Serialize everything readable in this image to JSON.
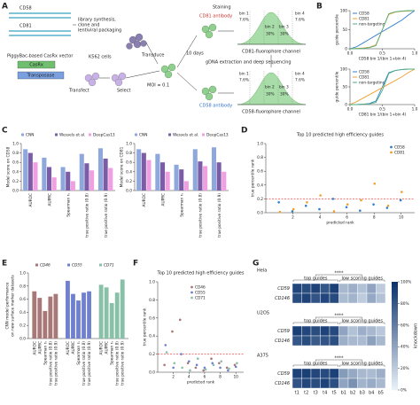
{
  "panel_labels": [
    "A",
    "B",
    "C",
    "D",
    "E",
    "F",
    "G"
  ],
  "diagram": {
    "guides": [
      "CD58",
      "CD81"
    ],
    "library_text": [
      "library synthesis,",
      "clone and",
      "lentiviral packaging"
    ],
    "vector_text": "PiggyBac-based CasRx vector",
    "vector_parts": [
      "CasRx",
      "Transposase"
    ],
    "cells": "K562 cells",
    "transfect": "Transfect",
    "select": "Select",
    "transduce": "Transduce",
    "moi": "MOI = 0.1",
    "days": "10 days",
    "staining": "Staining",
    "antibodies": [
      "CD81 antibody",
      "CD58 antibody"
    ],
    "sequencing": "gDNA extraction and deep sequencing",
    "bins": [
      "bin 1",
      "bin 2",
      "bin 3",
      "bin 4"
    ],
    "bin_percents": [
      "7.6%",
      "30%",
      "30%",
      "7.6%"
    ],
    "channels": [
      "CD81-fluorophore channel",
      "CD58-fluorophore channel"
    ]
  },
  "chart_data": [
    {
      "type": "line",
      "ylabel": "guide percentile",
      "xlabel": "CD58 bin 1/(bin 1+bin 4)",
      "x": [
        0,
        0.1,
        0.2,
        0.3,
        0.4,
        0.5,
        0.6,
        0.7,
        0.8,
        0.9,
        1.0
      ],
      "series": [
        {
          "name": "CD58",
          "color": "#2f7fd0",
          "values": [
            0,
            5,
            15,
            25,
            35,
            45,
            55,
            65,
            75,
            88,
            100
          ]
        },
        {
          "name": "CD81",
          "color": "#f0a030",
          "values": [
            0,
            1,
            2,
            4,
            10,
            50,
            90,
            96,
            98,
            99,
            100
          ]
        },
        {
          "name": "non-targeting",
          "color": "#4caf7a",
          "values": [
            0,
            0,
            1,
            3,
            8,
            50,
            92,
            97,
            99,
            100,
            100
          ]
        }
      ],
      "xlim": [
        0,
        1
      ],
      "xticks": [
        {
          "value": 0,
          "label": "0.0"
        },
        0.5,
        {
          "value": 1,
          "label": "1.0"
        }
      ],
      "ylim": [
        0,
        100
      ],
      "yticks": [
        0,
        50,
        100
      ]
    },
    {
      "type": "line",
      "ylabel": "guide percentile",
      "xlabel": "CD81 bin 1/(bin 1+bin 4)",
      "x": [
        0,
        0.1,
        0.2,
        0.3,
        0.4,
        0.5,
        0.6,
        0.7,
        0.8,
        0.9,
        1.0
      ],
      "series": [
        {
          "name": "CD58",
          "color": "#2f7fd0",
          "values": [
            0,
            0,
            1,
            3,
            10,
            50,
            90,
            96,
            99,
            100,
            100
          ]
        },
        {
          "name": "CD81",
          "color": "#f0a030",
          "values": [
            0,
            8,
            18,
            28,
            38,
            48,
            58,
            68,
            78,
            90,
            100
          ]
        },
        {
          "name": "non-targeting",
          "color": "#4caf7a",
          "values": [
            0,
            0,
            1,
            2,
            6,
            40,
            88,
            96,
            99,
            100,
            100
          ]
        }
      ],
      "xlim": [
        0,
        1
      ],
      "xticks": [
        {
          "value": 0,
          "label": "0.0"
        },
        0.5,
        {
          "value": 1,
          "label": "1.0"
        }
      ],
      "ylim": [
        0,
        100
      ],
      "yticks": [
        0,
        50,
        100
      ]
    },
    {
      "type": "bar",
      "ylabel": "Model score on CD58",
      "categories": [
        "AUROC",
        "AUPRC",
        "Spearman rₛ",
        "true positive ratio (0.8)",
        "true positive ratio (0.9)"
      ],
      "series": [
        {
          "name": "CNN",
          "color": "#8fa8dc",
          "values": [
            0.88,
            0.7,
            0.5,
            0.78,
            0.9
          ]
        },
        {
          "name": "Wessels et al.",
          "color": "#7b5ca6",
          "values": [
            0.8,
            0.5,
            0.4,
            0.58,
            0.68
          ]
        },
        {
          "name": "DeepCas13",
          "color": "#f0a0e0",
          "values": [
            0.6,
            0.28,
            0.2,
            0.43,
            0.48
          ]
        }
      ],
      "ylim": [
        0,
        1
      ],
      "yticks": [
        {
          "value": 0,
          "label": "0.0"
        },
        0.2,
        0.4,
        0.6,
        0.8,
        {
          "value": 1,
          "label": "1.0"
        }
      ]
    },
    {
      "type": "bar",
      "ylabel": "Model score on CD81",
      "categories": [
        "AUROC",
        "AUPRC",
        "Spearman rₛ",
        "true positive ratio (0.8)",
        "true positive ratio (0.9)"
      ],
      "series": [
        {
          "name": "CNN",
          "color": "#8fa8dc",
          "values": [
            0.88,
            0.78,
            0.55,
            0.88,
            0.92
          ]
        },
        {
          "name": "Wessels et al.",
          "color": "#7b5ca6",
          "values": [
            0.8,
            0.6,
            0.45,
            0.62,
            0.6
          ]
        },
        {
          "name": "DeepCas13",
          "color": "#f0a0e0",
          "values": [
            0.65,
            0.4,
            0.2,
            0.52,
            0.4
          ]
        }
      ],
      "ylim": [
        0,
        1
      ],
      "yticks": [
        {
          "value": 0,
          "label": "0.0"
        },
        0.2,
        0.4,
        0.6,
        0.8,
        {
          "value": 1,
          "label": "1.0"
        }
      ]
    },
    {
      "type": "scatter",
      "title": "Top 10 predicted high efficiency guides",
      "xlabel": "predicted rank",
      "ylabel": "true percentile rank",
      "x": [
        1,
        2,
        3,
        4,
        5,
        6,
        7,
        8,
        9,
        10
      ],
      "series": [
        {
          "name": "CD58",
          "color": "#2f7fd0",
          "values": [
            0.15,
            0.02,
            0.1,
            0.05,
            0.2,
            0.08,
            0.03,
            0.12,
            0.07,
            0.18
          ]
        },
        {
          "name": "CD81",
          "color": "#f0a030",
          "values": [
            0.01,
            0.05,
            0.15,
            0.25,
            0.02,
            0.12,
            0.18,
            0.42,
            0.1,
            0.3
          ]
        }
      ],
      "threshold": 0.2,
      "xlim": [
        0,
        11
      ],
      "xticks": [
        2,
        4,
        6,
        8,
        10
      ],
      "ylim": [
        0,
        1
      ],
      "yticks": [
        {
          "value": 0,
          "label": "0.0"
        },
        0.2,
        0.4,
        0.6,
        0.8,
        {
          "value": 1,
          "label": "1.0"
        }
      ]
    },
    {
      "type": "bar",
      "group_by": "series",
      "ylabel": [
        "CNN model performance",
        "on new surface marker datasets"
      ],
      "categories": [
        "AUROC",
        "AUPRC",
        "Spearman rₛ",
        "true positive ratio (0.8)",
        "true positive ratio (0.9)"
      ],
      "series": [
        {
          "name": "CD46",
          "color": "#a87878",
          "values": [
            0.72,
            0.62,
            0.42,
            0.64,
            0.68
          ]
        },
        {
          "name": "CD55",
          "color": "#7080d0",
          "values": [
            0.88,
            0.68,
            0.58,
            0.7,
            0.72
          ]
        },
        {
          "name": "CD71",
          "color": "#88c0a8",
          "values": [
            0.82,
            0.78,
            0.54,
            0.7,
            0.9
          ]
        }
      ],
      "ylim": [
        0,
        1
      ],
      "yticks": [
        {
          "value": 0,
          "label": "0.0"
        },
        0.2,
        0.4,
        0.6,
        0.8,
        {
          "value": 1,
          "label": "1.0"
        }
      ]
    },
    {
      "type": "scatter",
      "title": "Top 10 predicted high efficiency guides",
      "xlabel": "predicted rank",
      "ylabel": "true percentile rank",
      "x": [
        1,
        2,
        3,
        4,
        5,
        6,
        7,
        8,
        9,
        10
      ],
      "series": [
        {
          "name": "CD46",
          "color": "#a87878",
          "values": [
            0.08,
            0.45,
            0.58,
            0.1,
            0.05,
            0.02,
            0.15,
            0.1,
            0.05,
            0.08
          ]
        },
        {
          "name": "CD55",
          "color": "#7080d0",
          "values": [
            0.3,
            0.05,
            0.2,
            0.12,
            0.08,
            0.05,
            0.1,
            0.05,
            0.02,
            0.06
          ]
        },
        {
          "name": "CD71",
          "color": "#88c0a8",
          "values": [
            0.22,
            0.1,
            0.05,
            0.02,
            0.15,
            0.03,
            0.08,
            0.12,
            0.04,
            0.1
          ]
        }
      ],
      "threshold": 0.2,
      "xlim": [
        0,
        11
      ],
      "xticks": [
        2,
        4,
        6,
        8,
        10
      ],
      "ylim": [
        0,
        1
      ],
      "yticks": [
        {
          "value": 0,
          "label": "0.0"
        },
        0.2,
        0.4,
        0.6,
        0.8,
        {
          "value": 1,
          "label": "1.0"
        }
      ]
    },
    {
      "type": "heatmap",
      "columns": [
        "t1",
        "t2",
        "t3",
        "t4",
        "t5",
        "b1",
        "b2",
        "b3",
        "b4",
        "b5"
      ],
      "group_labels": [
        "top guides",
        "low scoring guides"
      ],
      "significance": "****",
      "blocks": [
        {
          "name": "Hela",
          "rows": [
            "CD59",
            "CD146"
          ],
          "values": [
            [
              88,
              85,
              90,
              80,
              92,
              30,
              35,
              25,
              40,
              20
            ],
            [
              85,
              90,
              82,
              88,
              86,
              28,
              32,
              20,
              38,
              25
            ]
          ]
        },
        {
          "name": "U2OS",
          "rows": [
            "CD59",
            "CD146"
          ],
          "values": [
            [
              92,
              88,
              85,
              90,
              87,
              40,
              25,
              35,
              30,
              22
            ],
            [
              80,
              85,
              78,
              82,
              84,
              35,
              30,
              28,
              42,
              30
            ]
          ]
        },
        {
          "name": "A375",
          "rows": [
            "CD59",
            "CD146"
          ],
          "values": [
            [
              90,
              92,
              88,
              86,
              91,
              45,
              38,
              30,
              28,
              35
            ],
            [
              82,
              88,
              85,
              90,
              84,
              40,
              50,
              32,
              36,
              30
            ]
          ]
        }
      ],
      "colorbar_label": "knockdown",
      "clim": [
        0,
        100
      ],
      "cticks": [
        {
          "value": 0,
          "label": "0%"
        },
        {
          "value": 20,
          "label": "20%"
        },
        {
          "value": 40,
          "label": "40%"
        },
        {
          "value": 60,
          "label": "60%"
        },
        {
          "value": 80,
          "label": "80%"
        },
        {
          "value": 100,
          "label": "100%"
        }
      ]
    }
  ]
}
